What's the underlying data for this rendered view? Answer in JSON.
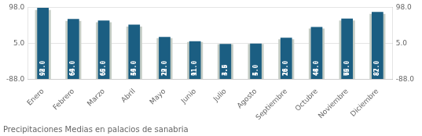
{
  "chart_data": {
    "type": "bar",
    "title": "Precipitaciones Medias en palacios de sanabria",
    "categories": [
      "Enero",
      "Febrero",
      "Marzo",
      "Abril",
      "Mayo",
      "Junio",
      "Julio",
      "Agosto",
      "Septiembre",
      "Octubre",
      "Noviembre",
      "Diciembre"
    ],
    "series": [
      {
        "color": "#c5cdc5",
        "values": [
          92.0,
          64.0,
          60.0,
          49.0,
          19.0,
          9.0,
          3.5,
          4.0,
          16.0,
          44.0,
          65.0,
          82.0
        ]
      },
      {
        "color": "#1b5e82",
        "values": [
          98.0,
          69.0,
          65.0,
          54.0,
          22.0,
          11.0,
          4.0,
          5.0,
          20.0,
          48.0,
          70.0,
          87.0
        ],
        "value_labels": [
          "98.0",
          "69.0",
          "65.0",
          "54.0",
          "22.0",
          "11.0",
          "4.0",
          "5.0",
          "20.0",
          "48.0",
          "70.0",
          "87.0"
        ]
      }
    ],
    "ylim": [
      -88,
      99
    ],
    "yticks": [
      {
        "value": -88,
        "label": "-88.0"
      },
      {
        "value": 5,
        "label": "5.0"
      },
      {
        "value": 98,
        "label": "98.0"
      }
    ],
    "y2lim": [
      -88,
      99
    ],
    "y2ticks": [
      {
        "value": -88,
        "label": "-88.0"
      },
      {
        "value": 5,
        "label": "5.0"
      },
      {
        "value": 98,
        "label": "98.0"
      }
    ],
    "grid": true,
    "data_labels": true
  }
}
